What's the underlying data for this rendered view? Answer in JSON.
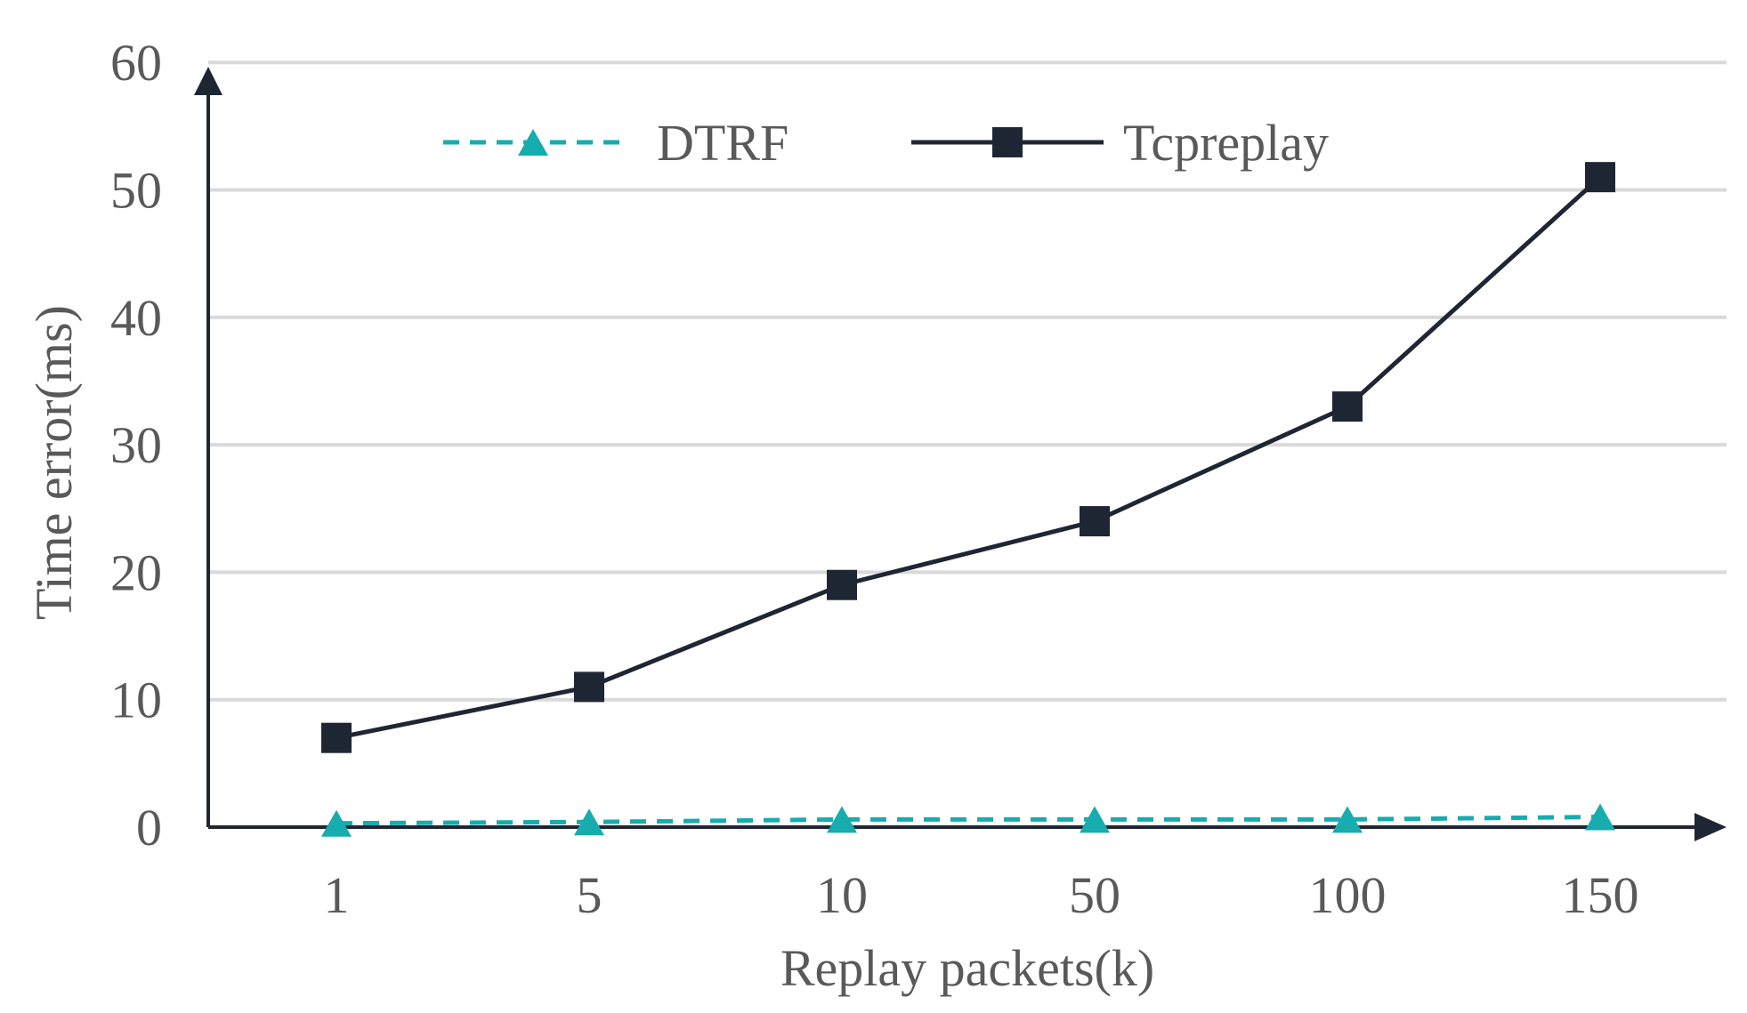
{
  "chart_data": {
    "type": "line",
    "title": "",
    "xlabel": "Replay packets(k)",
    "ylabel": "Time error(ms)",
    "categories": [
      "1",
      "5",
      "10",
      "50",
      "100",
      "150"
    ],
    "ylim": [
      0,
      60
    ],
    "yticks": [
      "0",
      "10",
      "20",
      "30",
      "40",
      "50",
      "60"
    ],
    "grid": true,
    "legend_position": "top",
    "series": [
      {
        "name": "DTRF",
        "values": [
          0.3,
          0.4,
          0.6,
          0.6,
          0.6,
          0.8
        ],
        "color": "#17ACAE",
        "line_style": "dashed",
        "marker": "triangle"
      },
      {
        "name": "Tcpreplay",
        "values": [
          7,
          11,
          19,
          24,
          33,
          51
        ],
        "color": "#1F2633",
        "line_style": "solid",
        "marker": "square"
      }
    ]
  }
}
